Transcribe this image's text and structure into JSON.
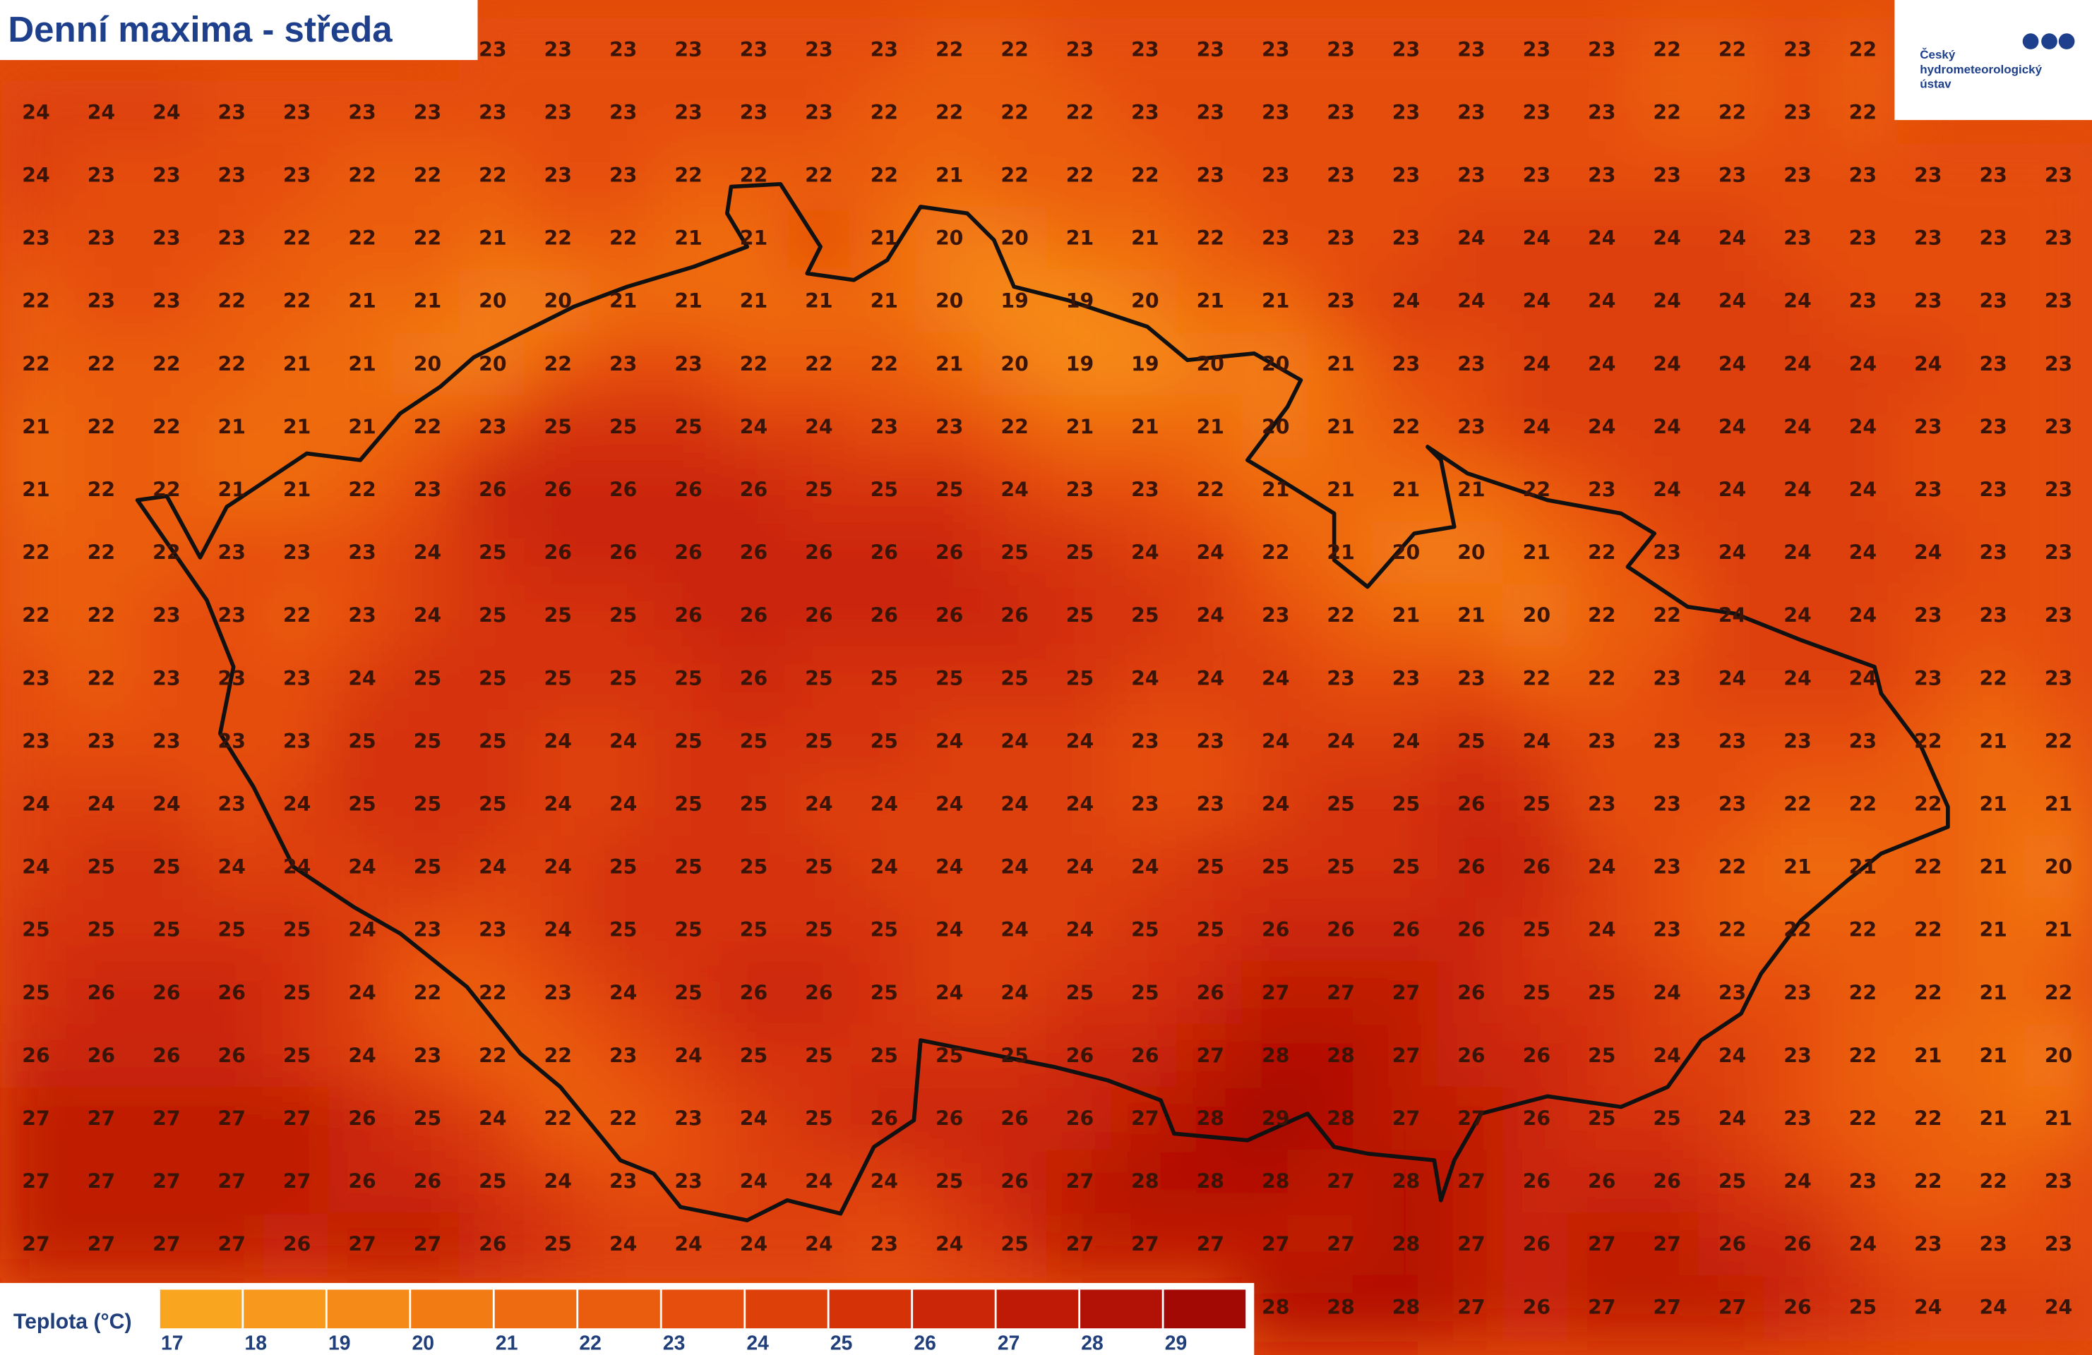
{
  "header": {
    "title": "Denní maxima - středa"
  },
  "logo": {
    "lines": [
      "Český",
      "hydrometeorologický",
      "ústav"
    ]
  },
  "grid": {
    "rows": [
      [
        null,
        null,
        null,
        null,
        null,
        null,
        null,
        23,
        23,
        23,
        23,
        23,
        23,
        23,
        22,
        22,
        23,
        23,
        23,
        23,
        23,
        23,
        23,
        23,
        23,
        22,
        22,
        23,
        22,
        null,
        null,
        null
      ],
      [
        24,
        24,
        24,
        23,
        23,
        23,
        23,
        23,
        23,
        23,
        23,
        23,
        23,
        22,
        22,
        22,
        22,
        23,
        23,
        23,
        23,
        23,
        23,
        23,
        23,
        22,
        22,
        23,
        22,
        null,
        null,
        null
      ],
      [
        24,
        23,
        23,
        23,
        23,
        22,
        22,
        22,
        23,
        23,
        22,
        22,
        22,
        22,
        21,
        22,
        22,
        22,
        23,
        23,
        23,
        23,
        23,
        23,
        23,
        23,
        23,
        23,
        23,
        23,
        23,
        23
      ],
      [
        23,
        23,
        23,
        23,
        22,
        22,
        22,
        21,
        22,
        22,
        21,
        21,
        null,
        21,
        20,
        20,
        21,
        21,
        22,
        23,
        23,
        23,
        24,
        24,
        24,
        24,
        24,
        23,
        23,
        23,
        23,
        23
      ],
      [
        22,
        23,
        23,
        22,
        22,
        21,
        21,
        20,
        20,
        21,
        21,
        21,
        21,
        21,
        20,
        19,
        19,
        20,
        21,
        21,
        23,
        24,
        24,
        24,
        24,
        24,
        24,
        24,
        23,
        23,
        23,
        23
      ],
      [
        22,
        22,
        22,
        22,
        21,
        21,
        20,
        20,
        22,
        23,
        23,
        22,
        22,
        22,
        21,
        20,
        19,
        19,
        20,
        20,
        21,
        23,
        23,
        24,
        24,
        24,
        24,
        24,
        24,
        24,
        23,
        23
      ],
      [
        21,
        22,
        22,
        21,
        21,
        21,
        22,
        23,
        25,
        25,
        25,
        24,
        24,
        23,
        23,
        22,
        21,
        21,
        21,
        20,
        21,
        22,
        23,
        24,
        24,
        24,
        24,
        24,
        24,
        23,
        23,
        23
      ],
      [
        21,
        22,
        22,
        21,
        21,
        22,
        23,
        26,
        26,
        26,
        26,
        26,
        25,
        25,
        25,
        24,
        23,
        23,
        22,
        21,
        21,
        21,
        21,
        22,
        23,
        24,
        24,
        24,
        24,
        23,
        23,
        23
      ],
      [
        22,
        22,
        22,
        23,
        23,
        23,
        24,
        25,
        26,
        26,
        26,
        26,
        26,
        26,
        26,
        25,
        25,
        24,
        24,
        22,
        21,
        20,
        20,
        21,
        22,
        23,
        24,
        24,
        24,
        24,
        23,
        23
      ],
      [
        22,
        22,
        23,
        23,
        22,
        23,
        24,
        25,
        25,
        25,
        26,
        26,
        26,
        26,
        26,
        26,
        25,
        25,
        24,
        23,
        22,
        21,
        21,
        20,
        22,
        22,
        24,
        24,
        24,
        23,
        23,
        23
      ],
      [
        23,
        22,
        23,
        23,
        23,
        24,
        25,
        25,
        25,
        25,
        25,
        26,
        25,
        25,
        25,
        25,
        25,
        24,
        24,
        24,
        23,
        23,
        23,
        22,
        22,
        23,
        24,
        24,
        24,
        23,
        22,
        23
      ],
      [
        23,
        23,
        23,
        23,
        23,
        25,
        25,
        25,
        24,
        24,
        25,
        25,
        25,
        25,
        24,
        24,
        24,
        23,
        23,
        24,
        24,
        24,
        25,
        24,
        23,
        23,
        23,
        23,
        23,
        22,
        21,
        22
      ],
      [
        24,
        24,
        24,
        23,
        24,
        25,
        25,
        25,
        24,
        24,
        25,
        25,
        24,
        24,
        24,
        24,
        24,
        23,
        23,
        24,
        25,
        25,
        26,
        25,
        23,
        23,
        23,
        22,
        22,
        22,
        21,
        21
      ],
      [
        24,
        25,
        25,
        24,
        24,
        24,
        25,
        24,
        24,
        25,
        25,
        25,
        25,
        24,
        24,
        24,
        24,
        24,
        25,
        25,
        25,
        25,
        26,
        26,
        24,
        23,
        22,
        21,
        21,
        22,
        21,
        20
      ],
      [
        25,
        25,
        25,
        25,
        25,
        24,
        23,
        23,
        24,
        25,
        25,
        25,
        25,
        25,
        24,
        24,
        24,
        25,
        25,
        26,
        26,
        26,
        26,
        25,
        24,
        23,
        22,
        22,
        22,
        22,
        21,
        21
      ],
      [
        25,
        26,
        26,
        26,
        25,
        24,
        22,
        22,
        23,
        24,
        25,
        26,
        26,
        25,
        24,
        24,
        25,
        25,
        26,
        27,
        27,
        27,
        26,
        25,
        25,
        24,
        23,
        23,
        22,
        22,
        21,
        22
      ],
      [
        26,
        26,
        26,
        26,
        25,
        24,
        23,
        22,
        22,
        23,
        24,
        25,
        25,
        25,
        25,
        25,
        26,
        26,
        27,
        28,
        28,
        27,
        26,
        26,
        25,
        24,
        24,
        23,
        22,
        21,
        21,
        20
      ],
      [
        27,
        27,
        27,
        27,
        27,
        26,
        25,
        24,
        22,
        22,
        23,
        24,
        25,
        26,
        26,
        26,
        26,
        27,
        28,
        29,
        28,
        27,
        27,
        26,
        25,
        25,
        24,
        23,
        22,
        22,
        21,
        21
      ],
      [
        27,
        27,
        27,
        27,
        27,
        26,
        26,
        25,
        24,
        23,
        23,
        24,
        24,
        24,
        25,
        26,
        27,
        28,
        28,
        28,
        27,
        28,
        27,
        26,
        26,
        26,
        25,
        24,
        23,
        22,
        22,
        23
      ],
      [
        27,
        27,
        27,
        27,
        26,
        27,
        27,
        26,
        25,
        24,
        24,
        24,
        24,
        23,
        24,
        25,
        27,
        27,
        27,
        27,
        27,
        28,
        27,
        26,
        27,
        27,
        26,
        26,
        24,
        23,
        23,
        23
      ],
      [
        null,
        null,
        null,
        null,
        null,
        null,
        null,
        null,
        null,
        null,
        null,
        null,
        null,
        null,
        null,
        null,
        null,
        null,
        null,
        28,
        28,
        28,
        27,
        26,
        27,
        27,
        27,
        26,
        25,
        24,
        24,
        24
      ]
    ]
  },
  "legend": {
    "title": "Teplota (°C)",
    "values": [
      17,
      18,
      19,
      20,
      21,
      22,
      23,
      24,
      25,
      26,
      27,
      28,
      29
    ],
    "colors": [
      "#f9a51f",
      "#f8981c",
      "#f68a18",
      "#f37b14",
      "#ef6b11",
      "#eb5d0e",
      "#e54e0c",
      "#de400a",
      "#d53208",
      "#cb2607",
      "#bf1a06",
      "#b21105",
      "#a30904"
    ]
  }
}
